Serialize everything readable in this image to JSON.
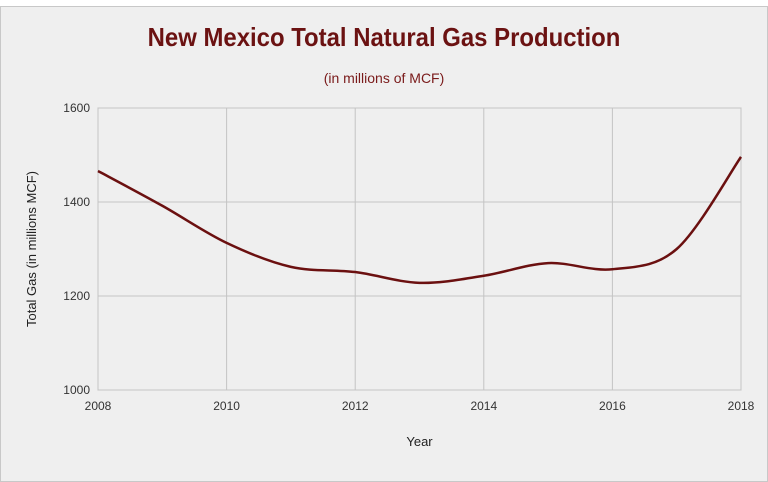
{
  "chart_data": {
    "type": "line",
    "title": "New Mexico Total Natural Gas Production",
    "subtitle": "(in millions of MCF)",
    "xlabel": "Year",
    "ylabel": "Total Gas (in millions MCF)",
    "xlim": [
      2008,
      2018
    ],
    "ylim": [
      1000,
      1600
    ],
    "xticks": [
      "2008",
      "2010",
      "2012",
      "2014",
      "2016",
      "2018"
    ],
    "yticks": [
      "1000",
      "1200",
      "1400",
      "1600"
    ],
    "grid": true,
    "smooth": true,
    "line_color": "#6b1010",
    "x": [
      2008,
      2009,
      2010,
      2011,
      2012,
      2013,
      2014,
      2015,
      2016,
      2017,
      2018
    ],
    "values": [
      1466,
      1392,
      1313,
      1262,
      1251,
      1228,
      1243,
      1270,
      1257,
      1300,
      1496
    ]
  }
}
